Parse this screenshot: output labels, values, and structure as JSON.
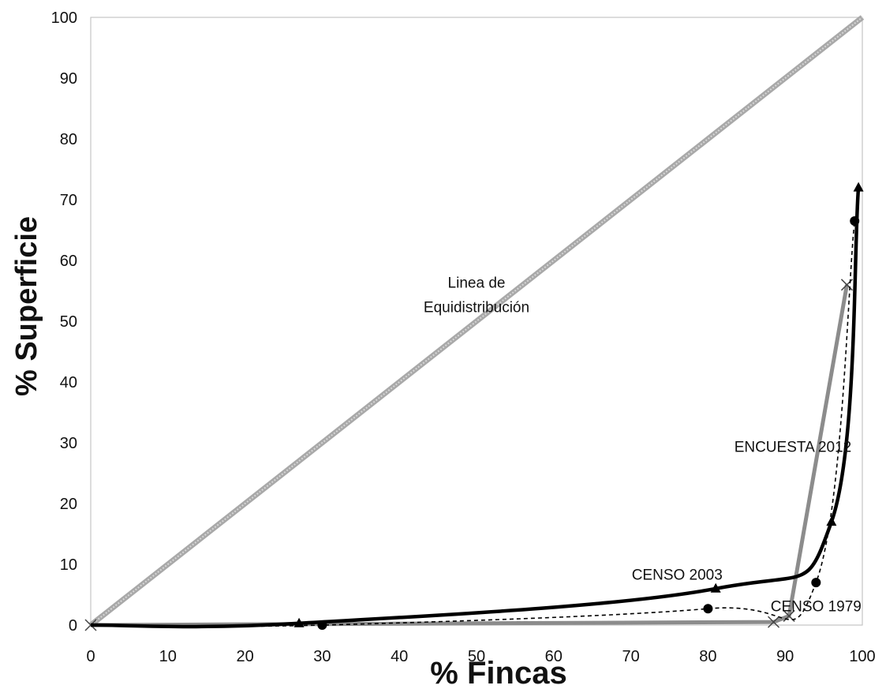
{
  "chart_data": {
    "type": "line",
    "title": "",
    "xlabel": "% Fincas",
    "ylabel": "% Superficie",
    "xlim": [
      0,
      100
    ],
    "ylim": [
      0,
      100
    ],
    "xticks": [
      "0",
      "10",
      "20",
      "30",
      "40",
      "50",
      "60",
      "70",
      "80",
      "90",
      "100"
    ],
    "yticks": [
      "0",
      "10",
      "20",
      "30",
      "40",
      "50",
      "60",
      "70",
      "80",
      "90",
      "100"
    ],
    "grid": false,
    "series": [
      {
        "name": "Linea de Equidistribución",
        "style": "thick-light-gray",
        "color": "#a9a9a9",
        "x": [
          0,
          100
        ],
        "y": [
          0,
          100
        ]
      },
      {
        "name": "ENCUESTA 2012",
        "style": "gray-cross-markers",
        "color": "#8c8c8c",
        "x": [
          0,
          88.5,
          90.5,
          98
        ],
        "y": [
          0,
          0.5,
          1.5,
          56
        ]
      },
      {
        "name": "CENSO 2003",
        "style": "solid-black-triangle-markers",
        "color": "#000000",
        "x": [
          0,
          27,
          81,
          96,
          99.5
        ],
        "y": [
          0,
          0.3,
          6,
          17,
          72
        ]
      },
      {
        "name": "CENSO 1979",
        "style": "dashed-black-circle-markers",
        "color": "#000000",
        "x": [
          0,
          30,
          80,
          94,
          99
        ],
        "y": [
          0,
          0,
          2.7,
          7,
          66.5
        ]
      }
    ],
    "annotations": [
      {
        "text": "Linea de",
        "x": 50,
        "y": 55.5
      },
      {
        "text": "Equidistribución",
        "x": 50,
        "y": 51.5
      },
      {
        "text": "ENCUESTA 2012",
        "x": 91,
        "y": 28.5
      },
      {
        "text": "CENSO 2003",
        "x": 76,
        "y": 7.5
      },
      {
        "text": "CENSO 1979",
        "x": 94,
        "y": 2.3
      }
    ]
  }
}
